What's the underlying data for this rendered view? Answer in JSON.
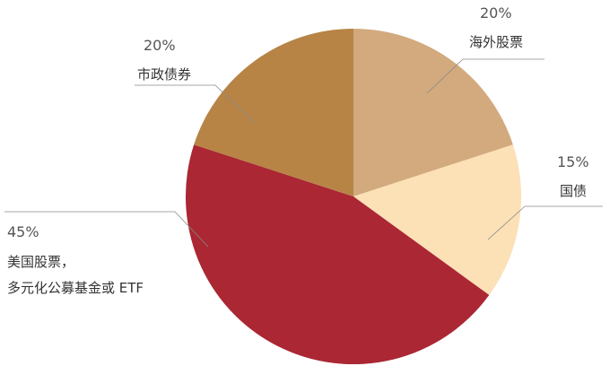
{
  "chart_data": {
    "type": "pie",
    "title": "",
    "start_angle_deg": 0,
    "direction": "clockwise",
    "slices": [
      {
        "value": 20,
        "percent_label": "20%",
        "label_lines": [
          "海外股票"
        ],
        "color": "#D2AA7E"
      },
      {
        "value": 15,
        "percent_label": "15%",
        "label_lines": [
          "国债"
        ],
        "color": "#FCE0B6"
      },
      {
        "value": 45,
        "percent_label": "45%",
        "label_lines": [
          "美国股票，",
          "多元化公募基金或 ETF"
        ],
        "color": "#AA2733"
      },
      {
        "value": 20,
        "percent_label": "20%",
        "label_lines": [
          "市政债券"
        ],
        "color": "#B78446"
      }
    ]
  }
}
